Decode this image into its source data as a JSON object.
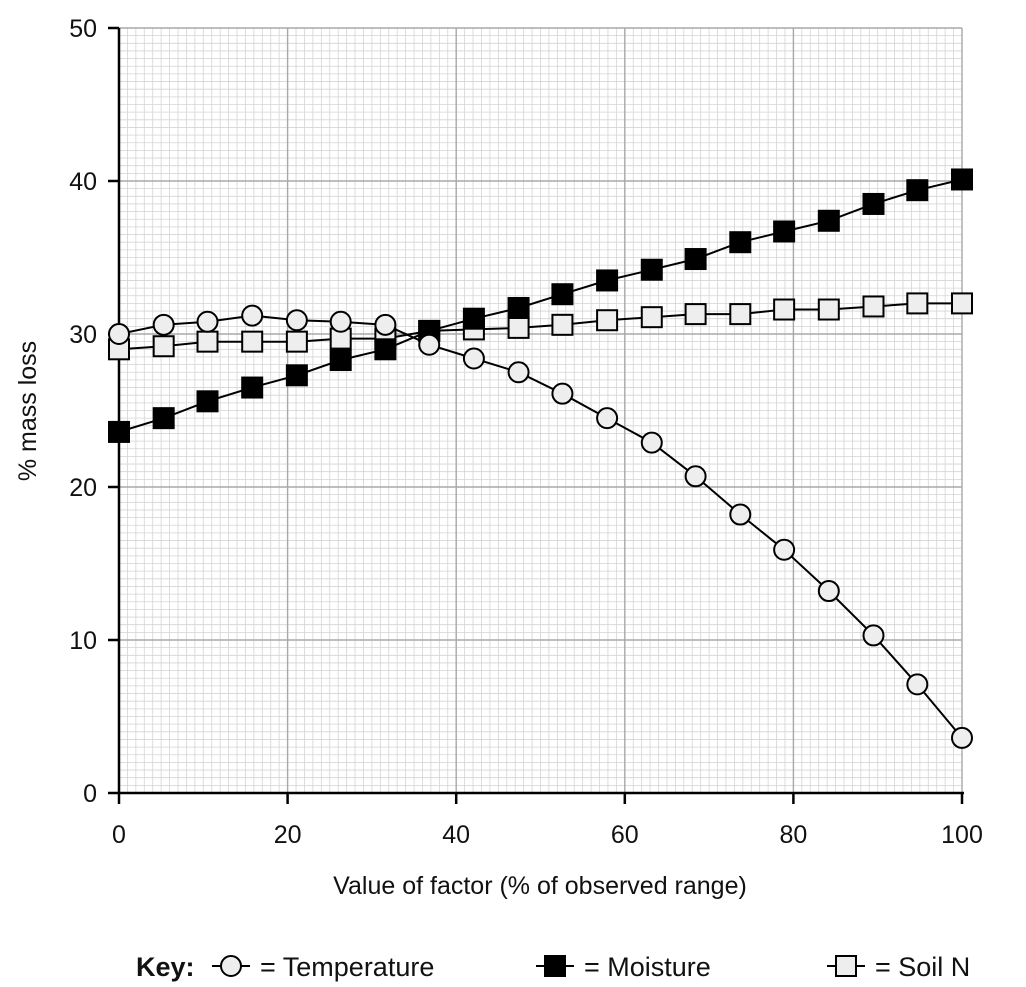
{
  "chart_data": {
    "type": "line",
    "xlabel": "Value of factor (% of observed range)",
    "ylabel": "% mass loss",
    "xlim": [
      0,
      100
    ],
    "ylim": [
      0,
      50
    ],
    "x_ticks": [
      0,
      20,
      40,
      60,
      80,
      100
    ],
    "y_ticks": [
      0,
      10,
      20,
      30,
      40,
      50
    ],
    "grid": true,
    "legend_position": "bottom",
    "key_label": "Key:",
    "series": [
      {
        "name": "= Temperature",
        "marker": "circle",
        "fill": "#eeeeee",
        "x": [
          0,
          5.3,
          10.5,
          15.8,
          21.1,
          26.3,
          31.6,
          36.8,
          42.1,
          47.4,
          52.6,
          57.9,
          63.2,
          68.4,
          73.7,
          78.9,
          84.2,
          89.5,
          94.7,
          100
        ],
        "y": [
          30.0,
          30.6,
          30.8,
          31.2,
          30.9,
          30.8,
          30.6,
          29.3,
          28.4,
          27.5,
          26.1,
          24.5,
          22.9,
          20.7,
          18.2,
          15.9,
          13.2,
          10.3,
          7.1,
          3.6
        ]
      },
      {
        "name": "= Moisture",
        "marker": "square",
        "fill": "#000000",
        "x": [
          0,
          5.3,
          10.5,
          15.8,
          21.1,
          26.3,
          31.6,
          36.8,
          42.1,
          47.4,
          52.6,
          57.9,
          63.2,
          68.4,
          73.7,
          78.9,
          84.2,
          89.5,
          94.7,
          100
        ],
        "y": [
          23.6,
          24.5,
          25.6,
          26.5,
          27.3,
          28.3,
          29.0,
          30.2,
          31.0,
          31.7,
          32.6,
          33.5,
          34.2,
          34.9,
          36.0,
          36.7,
          37.4,
          38.5,
          39.4,
          40.1
        ]
      },
      {
        "name": "= Soil N",
        "marker": "square",
        "fill": "#eeeeee",
        "x": [
          0,
          5.3,
          10.5,
          15.8,
          21.1,
          26.3,
          31.6,
          36.8,
          42.1,
          47.4,
          52.6,
          57.9,
          63.2,
          68.4,
          73.7,
          78.9,
          84.2,
          89.5,
          94.7,
          100
        ],
        "y": [
          29.0,
          29.2,
          29.5,
          29.5,
          29.5,
          29.7,
          29.7,
          30.2,
          30.3,
          30.4,
          30.6,
          30.9,
          31.1,
          31.3,
          31.3,
          31.6,
          31.6,
          31.8,
          32.0,
          32.0
        ]
      }
    ]
  }
}
